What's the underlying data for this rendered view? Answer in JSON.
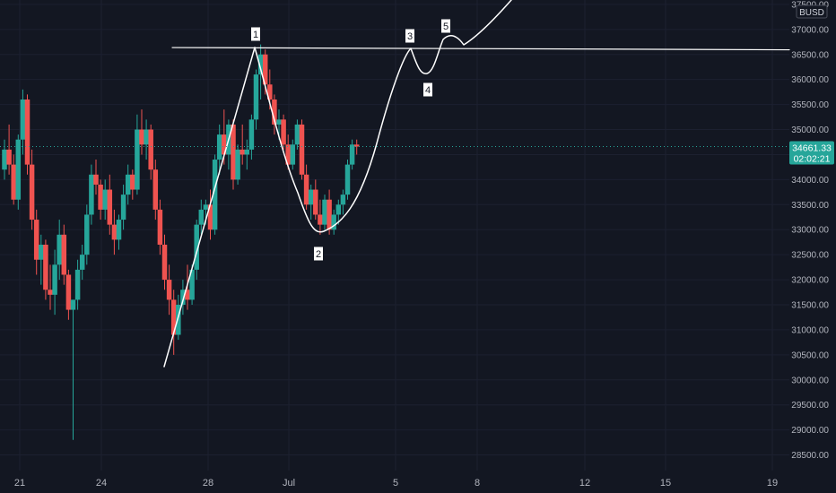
{
  "chart_data": {
    "type": "candlestick",
    "currency_label": "BUSD",
    "colors": {
      "up": "#26a69a",
      "down": "#ef5350",
      "background": "#131722",
      "drawing": "#ffffff",
      "last_price_line": "#26a69a"
    },
    "y_ticks": [
      "28500.00",
      "29000.00",
      "29500.00",
      "30000.00",
      "30500.00",
      "31000.00",
      "31500.00",
      "32000.00",
      "32500.00",
      "33000.00",
      "33500.00",
      "34000.00",
      "34500.00",
      "35000.00",
      "35500.00",
      "36000.00",
      "36500.00",
      "37000.00",
      "37500.00"
    ],
    "ylim": [
      28300,
      37600
    ],
    "x_ticks": [
      "21",
      "24",
      "28",
      "Jul",
      "5",
      "8",
      "12",
      "15",
      "19"
    ],
    "last_price": {
      "value": 34661.33,
      "label": "34661.33",
      "countdown": "02:02:21"
    },
    "resistance_level": 36620,
    "annotations": [
      {
        "label": "1",
        "price": 36630
      },
      {
        "label": "2",
        "price": 32900
      },
      {
        "label": "3",
        "price": 36620
      },
      {
        "label": "4",
        "price": 36080
      },
      {
        "label": "5",
        "price": 36830
      }
    ],
    "candles": [
      [
        34200,
        34800,
        34000,
        34600
      ],
      [
        34600,
        35100,
        34100,
        34300
      ],
      [
        34300,
        34500,
        33500,
        33600
      ],
      [
        33600,
        34900,
        33400,
        34800
      ],
      [
        34800,
        35800,
        34500,
        35600
      ],
      [
        35600,
        35700,
        34100,
        34300
      ],
      [
        34300,
        34600,
        33000,
        33200
      ],
      [
        33200,
        33400,
        32100,
        32400
      ],
      [
        32400,
        32900,
        31900,
        32700
      ],
      [
        32700,
        32800,
        31600,
        31800
      ],
      [
        31800,
        32300,
        31400,
        31700
      ],
      [
        31700,
        32600,
        31300,
        32300
      ],
      [
        32300,
        33200,
        32000,
        32900
      ],
      [
        32900,
        33100,
        31900,
        32100
      ],
      [
        32100,
        32200,
        31200,
        31400
      ],
      [
        31400,
        31600,
        28800,
        31600
      ],
      [
        31600,
        32400,
        31400,
        32200
      ],
      [
        32200,
        32700,
        32000,
        32500
      ],
      [
        32500,
        33500,
        32300,
        33300
      ],
      [
        33300,
        34300,
        33100,
        34100
      ],
      [
        34100,
        34400,
        33700,
        33900
      ],
      [
        33900,
        34000,
        33200,
        33400
      ],
      [
        33400,
        34000,
        33200,
        33800
      ],
      [
        33800,
        34100,
        32900,
        33100
      ],
      [
        33100,
        33400,
        32500,
        32800
      ],
      [
        32800,
        33300,
        32600,
        33200
      ],
      [
        33200,
        33900,
        33000,
        33700
      ],
      [
        33700,
        34300,
        33500,
        34100
      ],
      [
        34100,
        34200,
        33600,
        33800
      ],
      [
        33800,
        35300,
        33700,
        35000
      ],
      [
        35000,
        35400,
        34500,
        34700
      ],
      [
        34700,
        35200,
        34400,
        35000
      ],
      [
        35000,
        35100,
        34000,
        34200
      ],
      [
        34200,
        34400,
        33200,
        33400
      ],
      [
        33400,
        33600,
        32500,
        32700
      ],
      [
        32700,
        32900,
        31800,
        32000
      ],
      [
        32000,
        32300,
        31300,
        31600
      ],
      [
        31600,
        31800,
        30500,
        30900
      ],
      [
        30900,
        31700,
        30800,
        31500
      ],
      [
        31500,
        32000,
        31300,
        31800
      ],
      [
        31800,
        32300,
        31400,
        31600
      ],
      [
        31600,
        32300,
        31500,
        32200
      ],
      [
        32200,
        33200,
        32000,
        33100
      ],
      [
        33100,
        33600,
        32900,
        33400
      ],
      [
        33400,
        33600,
        33100,
        33500
      ],
      [
        33500,
        33800,
        32800,
        33000
      ],
      [
        33000,
        34500,
        32900,
        34400
      ],
      [
        34400,
        35100,
        34100,
        34900
      ],
      [
        34900,
        35400,
        34300,
        34500
      ],
      [
        34500,
        35200,
        34200,
        35100
      ],
      [
        35100,
        35200,
        33800,
        34000
      ],
      [
        34000,
        34700,
        33900,
        34600
      ],
      [
        34600,
        35100,
        34300,
        34500
      ],
      [
        34500,
        34800,
        34200,
        34600
      ],
      [
        34600,
        35300,
        34400,
        35200
      ],
      [
        35200,
        36200,
        35000,
        36100
      ],
      [
        36100,
        36700,
        35600,
        36500
      ],
      [
        36500,
        36600,
        35700,
        35900
      ],
      [
        35900,
        36200,
        35400,
        35600
      ],
      [
        35600,
        35700,
        34900,
        35100
      ],
      [
        35100,
        35400,
        34800,
        35200
      ],
      [
        35200,
        35300,
        34600,
        34700
      ],
      [
        34700,
        34900,
        34200,
        34300
      ],
      [
        34300,
        34800,
        34200,
        34700
      ],
      [
        34700,
        35200,
        34600,
        35100
      ],
      [
        35100,
        35200,
        34000,
        34100
      ],
      [
        34100,
        34300,
        33400,
        33500
      ],
      [
        33500,
        33900,
        33200,
        33800
      ],
      [
        33800,
        34000,
        33200,
        33300
      ],
      [
        33300,
        33600,
        32900,
        33100
      ],
      [
        33100,
        33700,
        33000,
        33600
      ],
      [
        33600,
        33800,
        32900,
        33000
      ],
      [
        33000,
        33400,
        32900,
        33300
      ],
      [
        33300,
        33600,
        33100,
        33500
      ],
      [
        33500,
        33800,
        33300,
        33700
      ],
      [
        33700,
        34400,
        33600,
        34300
      ],
      [
        34300,
        34800,
        34200,
        34700
      ],
      [
        34700,
        34800,
        34500,
        34660
      ]
    ]
  }
}
